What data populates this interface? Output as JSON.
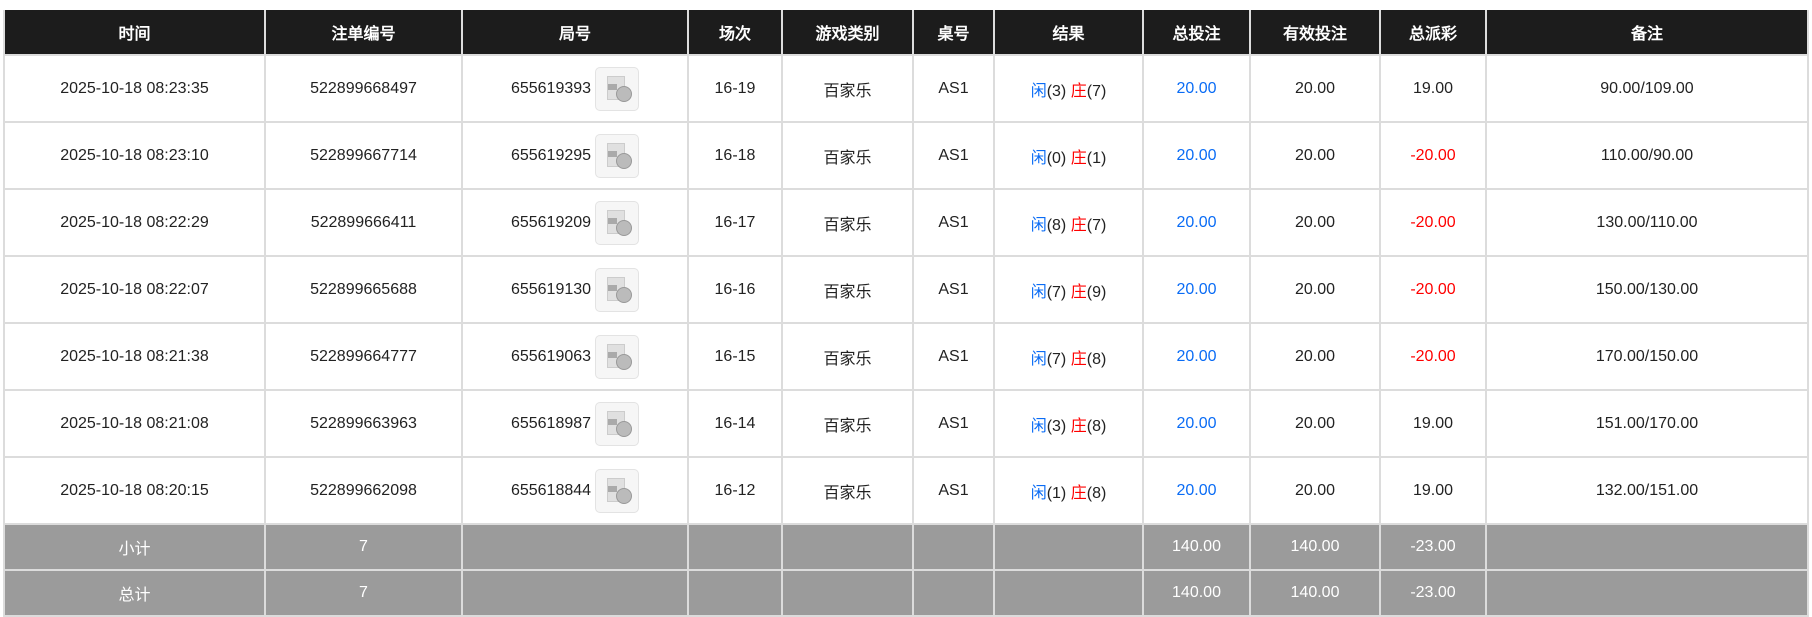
{
  "headers": [
    "时间",
    "注单编号",
    "局号",
    "场次",
    "游戏类别",
    "桌号",
    "结果",
    "总投注",
    "有效投注",
    "总派彩",
    "备注"
  ],
  "colors": {
    "header_bg": "#1c1c1c",
    "summary_bg": "#9b9b9b",
    "blue": "#0a6cf5",
    "red": "#ff0000"
  },
  "rows": [
    {
      "time": "2025-10-18 08:23:35",
      "bet_id": "522899668497",
      "round": "655619393",
      "shoe": "16-19",
      "game": "百家乐",
      "table": "AS1",
      "player": "闲",
      "player_pts": "(3)",
      "banker": "庄",
      "banker_pts": "(7)",
      "total_bet": "20.00",
      "valid_bet": "20.00",
      "payout": "19.00",
      "payout_negative": false,
      "note": "90.00/109.00"
    },
    {
      "time": "2025-10-18 08:23:10",
      "bet_id": "522899667714",
      "round": "655619295",
      "shoe": "16-18",
      "game": "百家乐",
      "table": "AS1",
      "player": "闲",
      "player_pts": "(0)",
      "banker": "庄",
      "banker_pts": "(1)",
      "total_bet": "20.00",
      "valid_bet": "20.00",
      "payout": "-20.00",
      "payout_negative": true,
      "note": "110.00/90.00"
    },
    {
      "time": "2025-10-18 08:22:29",
      "bet_id": "522899666411",
      "round": "655619209",
      "shoe": "16-17",
      "game": "百家乐",
      "table": "AS1",
      "player": "闲",
      "player_pts": "(8)",
      "banker": "庄",
      "banker_pts": "(7)",
      "total_bet": "20.00",
      "valid_bet": "20.00",
      "payout": "-20.00",
      "payout_negative": true,
      "note": "130.00/110.00"
    },
    {
      "time": "2025-10-18 08:22:07",
      "bet_id": "522899665688",
      "round": "655619130",
      "shoe": "16-16",
      "game": "百家乐",
      "table": "AS1",
      "player": "闲",
      "player_pts": "(7)",
      "banker": "庄",
      "banker_pts": "(9)",
      "total_bet": "20.00",
      "valid_bet": "20.00",
      "payout": "-20.00",
      "payout_negative": true,
      "note": "150.00/130.00"
    },
    {
      "time": "2025-10-18 08:21:38",
      "bet_id": "522899664777",
      "round": "655619063",
      "shoe": "16-15",
      "game": "百家乐",
      "table": "AS1",
      "player": "闲",
      "player_pts": "(7)",
      "banker": "庄",
      "banker_pts": "(8)",
      "total_bet": "20.00",
      "valid_bet": "20.00",
      "payout": "-20.00",
      "payout_negative": true,
      "note": "170.00/150.00"
    },
    {
      "time": "2025-10-18 08:21:08",
      "bet_id": "522899663963",
      "round": "655618987",
      "shoe": "16-14",
      "game": "百家乐",
      "table": "AS1",
      "player": "闲",
      "player_pts": "(3)",
      "banker": "庄",
      "banker_pts": "(8)",
      "total_bet": "20.00",
      "valid_bet": "20.00",
      "payout": "19.00",
      "payout_negative": false,
      "note": "151.00/170.00"
    },
    {
      "time": "2025-10-18 08:20:15",
      "bet_id": "522899662098",
      "round": "655618844",
      "shoe": "16-12",
      "game": "百家乐",
      "table": "AS1",
      "player": "闲",
      "player_pts": "(1)",
      "banker": "庄",
      "banker_pts": "(8)",
      "total_bet": "20.00",
      "valid_bet": "20.00",
      "payout": "19.00",
      "payout_negative": false,
      "note": "132.00/151.00"
    }
  ],
  "subtotal": {
    "label": "小计",
    "count": "7",
    "total_bet": "140.00",
    "valid_bet": "140.00",
    "payout": "-23.00"
  },
  "total": {
    "label": "总计",
    "count": "7",
    "total_bet": "140.00",
    "valid_bet": "140.00",
    "payout": "-23.00"
  }
}
